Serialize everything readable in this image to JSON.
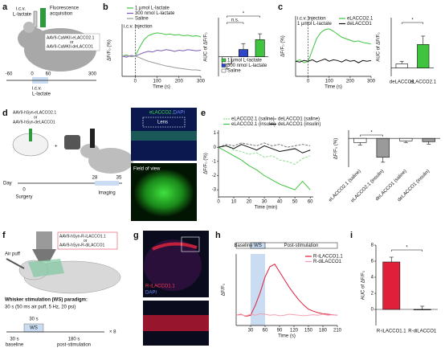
{
  "figure": {
    "a": {
      "letter": "a",
      "icv": "i.c.v.",
      "lactate": "L-lactate",
      "acq1": "Fluorescence",
      "acq2": "acquisition",
      "virus1": "AAV9-CaMKII-eLACCO2.1",
      "or": "or",
      "virus2": "AAV9-CaMKII-deLACCO1",
      "timeline_ticks": [
        -60,
        0,
        60,
        300
      ],
      "timeline_icv": "i.c.v.",
      "timeline_lactate": "L-lactate"
    },
    "b": {
      "letter": "b"
    },
    "c": {
      "letter": "c"
    },
    "d": {
      "letter": "d",
      "virus1": "AAV9-hSyn-eLACCO2.1",
      "or": "or",
      "virus2": "AAV9-hSyn-deLACCO1",
      "day": "Day",
      "days": [
        0,
        28,
        35
      ],
      "surgery": "Surgery",
      "imaging": "Imaging",
      "stain1": "eLACCO2.1",
      "stain2": "DAPI",
      "lens": "Lens",
      "fov": "Field of view"
    },
    "e": {
      "letter": "e"
    },
    "f": {
      "letter": "f",
      "virus1": "AAV9-hSyn-R-iLACCO1.1",
      "or": "or",
      "virus2": "AAV9-hSyn-R-diLACCO1",
      "airpuff": "Air puff",
      "paradigm": "Whisker stimulation (WS) paradigm:",
      "detail": "30 s (50 ms air puff, 5 Hz, 20 psi)",
      "ws_dur": "30 s",
      "ws": "WS",
      "base_dur": "30 s",
      "base": "baseline",
      "post_dur": "180 s",
      "post": "post-stimulation",
      "repeat": "× 8"
    },
    "g": {
      "letter": "g",
      "stain1": "R-iLACCO1.1",
      "stain2": "DAPI"
    },
    "h": {
      "letter": "h"
    },
    "i": {
      "letter": "i"
    }
  },
  "chart_data": [
    {
      "type": "line",
      "xlabel": "Time (s)",
      "ylabel": "ΔF/F₀ (%)",
      "xlim": [
        -60,
        300
      ],
      "ylim": [
        -3.5,
        5.5
      ],
      "xticks": [
        0,
        100,
        200,
        300
      ],
      "marker_x": 0,
      "annotations": [
        "i.c.v. injection"
      ],
      "legend": "top",
      "x": [
        -60,
        -40,
        -20,
        0,
        20,
        40,
        60,
        80,
        100,
        120,
        140,
        160,
        180,
        200,
        220,
        240,
        260,
        280,
        300
      ],
      "series": [
        {
          "name": "1 μmol L-lactate",
          "color": "#3ec43e",
          "values": [
            0,
            0.2,
            -0.1,
            0,
            1.5,
            2.8,
            3.5,
            3.8,
            4,
            3.9,
            3.7,
            3.8,
            3.6,
            3.7,
            3.5,
            3.6,
            3.4,
            3.5,
            3.3
          ]
        },
        {
          "name": "300 nmol L-lactate",
          "color": "#7b5bb5",
          "values": [
            0,
            -0.2,
            0.1,
            0,
            0.3,
            0.6,
            0.8,
            0.7,
            1,
            0.9,
            1.1,
            1,
            0.8,
            1,
            0.9,
            1.1,
            1,
            0.9,
            1
          ]
        },
        {
          "name": "Saline",
          "color": "#9a9a9a",
          "values": [
            0,
            0.1,
            -0.1,
            0,
            -0.3,
            -0.6,
            -0.9,
            -1.1,
            -1.3,
            -1.5,
            -1.7,
            -1.8,
            -2,
            -2.1,
            -2.2,
            -2.3,
            -2.4,
            -2.4,
            -2.5
          ]
        }
      ]
    },
    {
      "type": "bar",
      "ylabel": "AUC of ΔF/F₀",
      "ylim": [
        -4,
        8
      ],
      "legend": "bottom-right",
      "annotations": [
        "n.s.",
        "*"
      ],
      "series": [
        {
          "name": "Saline",
          "color": "#ffffff",
          "values": [
            -1.5
          ],
          "errors": [
            1
          ]
        },
        {
          "name": "300 nmol L-lactate",
          "color": "#2f45c8",
          "values": [
            1.5
          ],
          "errors": [
            1.2
          ]
        },
        {
          "name": "1 μmol L-lactate",
          "color": "#3ec43e",
          "values": [
            3.5
          ],
          "errors": [
            1.2
          ]
        }
      ]
    },
    {
      "type": "line",
      "xlabel": "Time (s)",
      "ylabel": "ΔF/F₀ (%)",
      "xlim": [
        -60,
        300
      ],
      "ylim": [
        -2,
        6
      ],
      "xticks": [
        0,
        100,
        200,
        300
      ],
      "marker_x": 0,
      "annotations": [
        "i.c.v. injection",
        "1 μmol L-lactate"
      ],
      "legend": "top-right",
      "x": [
        -60,
        -40,
        -20,
        0,
        20,
        40,
        60,
        80,
        100,
        120,
        140,
        160,
        180,
        200,
        220,
        240,
        260,
        280,
        300
      ],
      "series": [
        {
          "name": "eLACCO2.1",
          "color": "#3ec43e",
          "values": [
            0,
            0.2,
            -0.2,
            0,
            1.5,
            3,
            3.8,
            4.2,
            4.3,
            4,
            3.6,
            3.2,
            3,
            2.8,
            2.6,
            2.7,
            2.5,
            2.4,
            2.3
          ]
        },
        {
          "name": "deLACCO1",
          "color": "#111111",
          "values": [
            0,
            -0.1,
            0.1,
            0,
            0.2,
            -0.1,
            0.1,
            0.3,
            0,
            0.2,
            0.1,
            -0.1,
            0.2,
            0,
            0.1,
            -0.2,
            0.1,
            0,
            0.1
          ]
        }
      ]
    },
    {
      "type": "bar",
      "ylabel": "AUC of ΔF/F₀",
      "ylim": [
        -1,
        6
      ],
      "annotations": [
        "*"
      ],
      "categories": [
        "deLACCO1",
        "eLACCO2.1"
      ],
      "values": [
        0.5,
        2.8
      ],
      "errors": [
        0.3,
        1
      ],
      "colors": [
        "#ffffff",
        "#3ec43e"
      ]
    },
    {
      "type": "line",
      "xlabel": "Time (min)",
      "ylabel": "ΔF/F₀ (%)",
      "xlim": [
        0,
        62
      ],
      "ylim": [
        -3.5,
        1.2
      ],
      "xticks": [
        0,
        10,
        20,
        30,
        40,
        50,
        60
      ],
      "yticks": [
        1,
        0,
        -1,
        -2,
        -3
      ],
      "legend": "top",
      "x": [
        0,
        5,
        10,
        15,
        20,
        25,
        30,
        35,
        40,
        45,
        50,
        55,
        60
      ],
      "series": [
        {
          "name": "eLACCO2.1 (saline)",
          "color": "#8fdc8f",
          "dashed": true,
          "values": [
            0,
            0.1,
            -0.2,
            -0.3,
            -0.5,
            -0.4,
            -0.7,
            -0.6,
            -0.9,
            -1.0,
            -1.2,
            -0.8,
            -0.6
          ]
        },
        {
          "name": "eLACCO2.1 (insulin)",
          "color": "#3ec43e",
          "values": [
            0,
            -0.3,
            -0.6,
            -0.9,
            -1.3,
            -1.6,
            -2.0,
            -2.3,
            -2.6,
            -2.8,
            -3.0,
            -2.4,
            -3.0
          ]
        },
        {
          "name": "deLACCO1 (saline)",
          "color": "#777777",
          "dashed": true,
          "values": [
            0,
            0.2,
            0.1,
            0.3,
            0.2,
            0.1,
            0.3,
            0.1,
            0.2,
            0.0,
            0.1,
            0.2,
            0.1
          ]
        },
        {
          "name": "deLACCO1 (insulin)",
          "color": "#111111",
          "values": [
            0,
            0.1,
            -0.1,
            0.2,
            0,
            -0.2,
            0.1,
            -0.1,
            -0.3,
            -0.2,
            -0.1,
            -0.4,
            -0.2
          ]
        }
      ]
    },
    {
      "type": "bar",
      "ylabel": "ΔF/F₀ (%)",
      "ylim": [
        -3.5,
        1
      ],
      "annotations": [
        "*"
      ],
      "categories": [
        "eLACCO2.1 (saline)",
        "eLACCO2.1 (insulin)",
        "deLACCO1 (saline)",
        "deLACCO1 (insulin)"
      ],
      "values": [
        -0.5,
        -2.3,
        -0.3,
        -0.4
      ],
      "errors": [
        0.3,
        0.6,
        0.2,
        0.3
      ],
      "colors": [
        "#ffffff",
        "#9a9a9a",
        "#ffffff",
        "#9a9a9a"
      ]
    },
    {
      "type": "line",
      "xlabel": "Time (s)",
      "ylabel": "ΔF/F₀",
      "xlim": [
        0,
        210
      ],
      "ylim": [
        -0.2,
        1.2
      ],
      "xticks": [
        30,
        60,
        90,
        120,
        150,
        180,
        210
      ],
      "stim_window": [
        30,
        60
      ],
      "header": [
        "Baseline",
        "WS",
        "Post-stimulation"
      ],
      "legend": "top-right",
      "x": [
        0,
        10,
        20,
        30,
        40,
        50,
        60,
        70,
        80,
        90,
        100,
        110,
        120,
        130,
        140,
        150,
        160,
        170,
        180,
        190,
        200,
        210
      ],
      "series": [
        {
          "name": "R-iLACCO1.1",
          "color": "#e0203a",
          "values": [
            0,
            0.02,
            -0.02,
            0,
            0.2,
            0.45,
            0.75,
            0.95,
            1.0,
            0.85,
            0.7,
            0.55,
            0.42,
            0.3,
            0.2,
            0.12,
            0.08,
            0.05,
            0.03,
            0.02,
            0.01,
            0
          ]
        },
        {
          "name": "R-diLACCO1",
          "color": "#f2a0b0",
          "values": [
            0,
            0.01,
            -0.01,
            0.02,
            0,
            0.03,
            0.02,
            0,
            0.01,
            -0.01,
            0,
            0.02,
            0.01,
            0,
            -0.01,
            0,
            0.01,
            0,
            0.02,
            0,
            0.01,
            0
          ]
        }
      ]
    },
    {
      "type": "bar",
      "ylabel": "AUC of ΔF/F₀",
      "ylim": [
        -2,
        8
      ],
      "yticks": [
        0,
        2,
        4,
        6,
        8
      ],
      "annotations": [
        "*"
      ],
      "categories": [
        "R-iLACCO1.1",
        "R-diLACCO1"
      ],
      "values": [
        5.9,
        0
      ],
      "errors": [
        0.6,
        0.4
      ],
      "colors": [
        "#e0203a",
        "#ffffff"
      ]
    }
  ]
}
